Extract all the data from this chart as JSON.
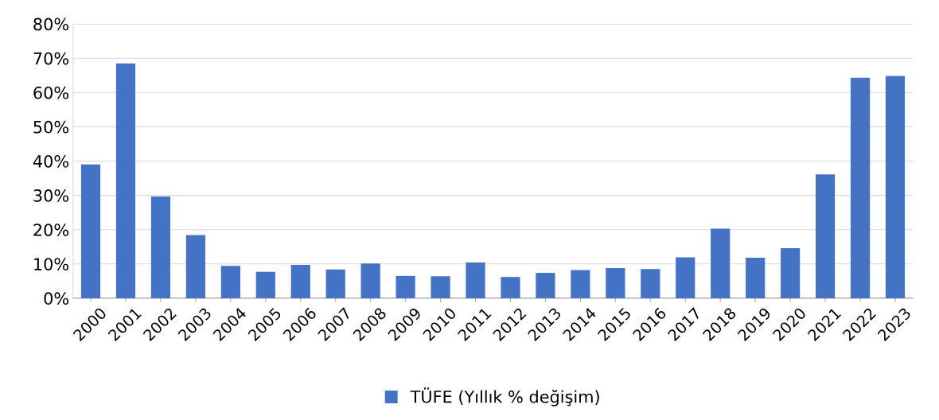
{
  "chart_data": {
    "type": "bar",
    "categories": [
      "2000",
      "2001",
      "2002",
      "2003",
      "2004",
      "2005",
      "2006",
      "2007",
      "2008",
      "2009",
      "2010",
      "2011",
      "2012",
      "2013",
      "2014",
      "2015",
      "2016",
      "2017",
      "2018",
      "2019",
      "2020",
      "2021",
      "2022",
      "2023"
    ],
    "series": [
      {
        "name": "TÜFE (Yıllık % değişim)",
        "color": "#4472c4",
        "values": [
          39.0,
          68.5,
          29.7,
          18.4,
          9.4,
          7.7,
          9.7,
          8.4,
          10.1,
          6.5,
          6.4,
          10.4,
          6.2,
          7.4,
          8.2,
          8.8,
          8.5,
          11.9,
          20.3,
          11.8,
          14.6,
          36.1,
          64.3,
          64.8
        ]
      }
    ],
    "ylim": [
      0,
      80
    ],
    "yticks": [
      {
        "value": 0,
        "label": "0%"
      },
      {
        "value": 10,
        "label": "10%"
      },
      {
        "value": 20,
        "label": "20%"
      },
      {
        "value": 30,
        "label": "30%"
      },
      {
        "value": 40,
        "label": "40%"
      },
      {
        "value": 50,
        "label": "50%"
      },
      {
        "value": 60,
        "label": "60%"
      },
      {
        "value": 70,
        "label": "70%"
      },
      {
        "value": 80,
        "label": "80%"
      }
    ],
    "grid": "y",
    "legend": "bottom"
  }
}
